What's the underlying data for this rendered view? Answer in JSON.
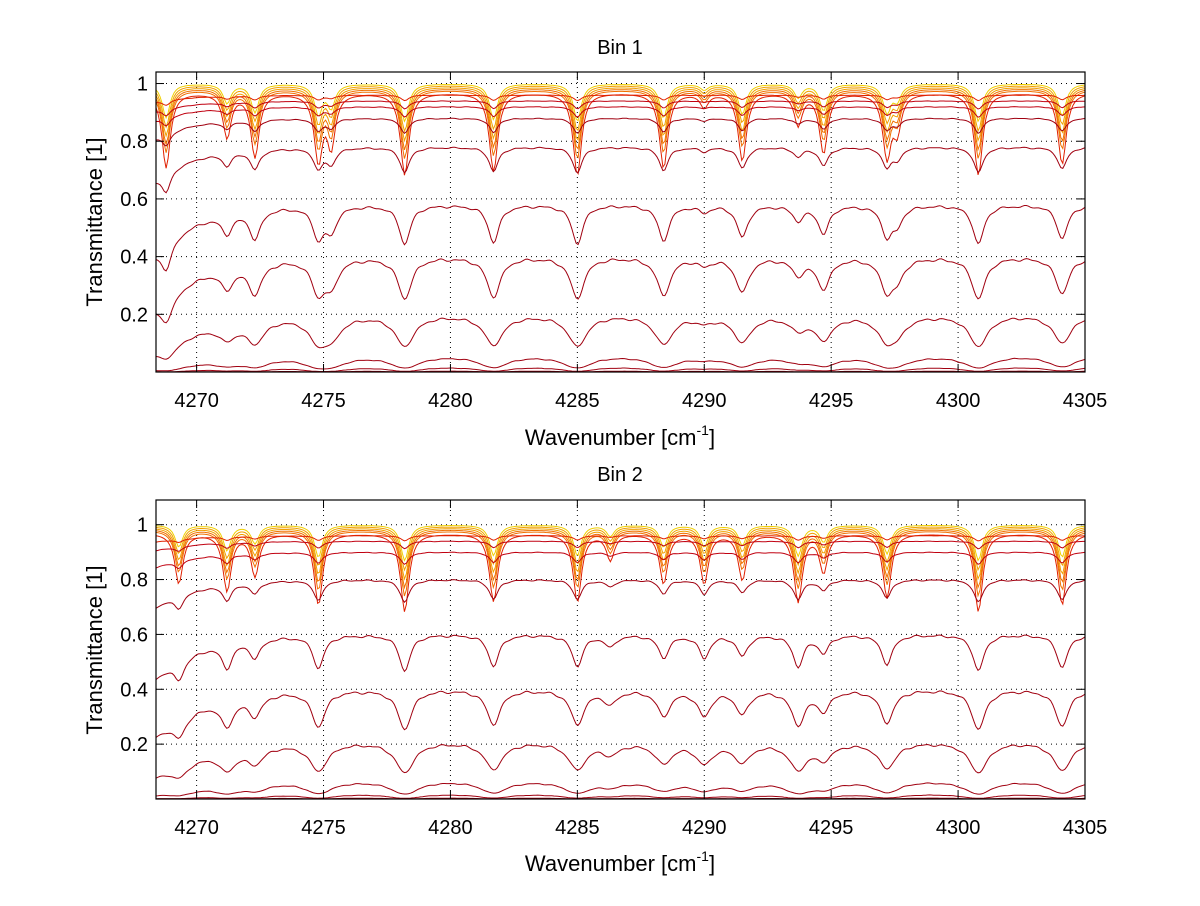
{
  "chart_data": [
    {
      "type": "line",
      "title": "Bin 1",
      "xlabel": "Wavenumber [cm",
      "xlabel_sup": "-1",
      "xlabel_end": "]",
      "ylabel": "Transmittance [1]",
      "xlim": [
        4268.4,
        4305
      ],
      "ylim": [
        0,
        1.04
      ],
      "xticks": [
        4270,
        4275,
        4280,
        4285,
        4290,
        4295,
        4300,
        4305
      ],
      "xtick_labels": [
        "4270",
        "4275",
        "4280",
        "4285",
        "4290",
        "4295",
        "4300",
        "4305"
      ],
      "yticks": [
        0.2,
        0.4,
        0.6,
        0.8,
        1
      ],
      "ytick_labels": [
        "0.2",
        "0.4",
        "0.6",
        "0.8",
        "1"
      ],
      "grid": true,
      "lines_x": [
        4268.8,
        4271.2,
        4272.3,
        4274.8,
        4275.3,
        4278.2,
        4281.7,
        4285.0,
        4288.4,
        4290.0,
        4291.5,
        4293.7,
        4294.7,
        4297.2,
        4297.6,
        4300.8,
        4304.1
      ],
      "lines_depth": [
        0.9,
        0.5,
        0.75,
        0.8,
        0.6,
        1.0,
        0.95,
        1.0,
        0.9,
        0.15,
        0.8,
        0.35,
        0.7,
        0.75,
        0.4,
        1.0,
        0.85
      ],
      "series_levels": [
        0.005,
        0.02,
        0.06,
        0.2,
        0.4,
        0.58,
        0.78,
        0.88,
        0.92,
        0.94,
        0.96,
        0.97,
        0.98,
        0.985,
        0.99,
        0.995,
        1.0
      ]
    },
    {
      "type": "line",
      "title": "Bin 2",
      "xlabel": "Wavenumber [cm",
      "xlabel_sup": "-1",
      "xlabel_end": "]",
      "ylabel": "Transmittance [1]",
      "xlim": [
        4268.4,
        4305
      ],
      "ylim": [
        0,
        1.09
      ],
      "xticks": [
        4270,
        4275,
        4280,
        4285,
        4290,
        4295,
        4300,
        4305
      ],
      "xtick_labels": [
        "4270",
        "4275",
        "4280",
        "4285",
        "4290",
        "4295",
        "4300",
        "4305"
      ],
      "yticks": [
        0.2,
        0.4,
        0.6,
        0.8,
        1
      ],
      "ytick_labels": [
        "0.2",
        "0.4",
        "0.6",
        "0.8",
        "1"
      ],
      "grid": true,
      "lines_x": [
        4269.3,
        4271.2,
        4272.3,
        4274.8,
        4278.2,
        4281.7,
        4285.0,
        4286.3,
        4288.4,
        4290.0,
        4291.5,
        4293.7,
        4294.7,
        4297.2,
        4300.8,
        4304.1
      ],
      "lines_depth": [
        0.6,
        0.7,
        0.5,
        0.9,
        1.0,
        0.85,
        0.85,
        0.3,
        0.6,
        0.6,
        0.55,
        0.85,
        0.45,
        0.8,
        1.0,
        0.9
      ],
      "series_levels": [
        0.005,
        0.02,
        0.07,
        0.21,
        0.4,
        0.6,
        0.8,
        0.9,
        0.94,
        0.96,
        0.97,
        0.98,
        0.985,
        0.99,
        0.995,
        1.0
      ]
    }
  ]
}
